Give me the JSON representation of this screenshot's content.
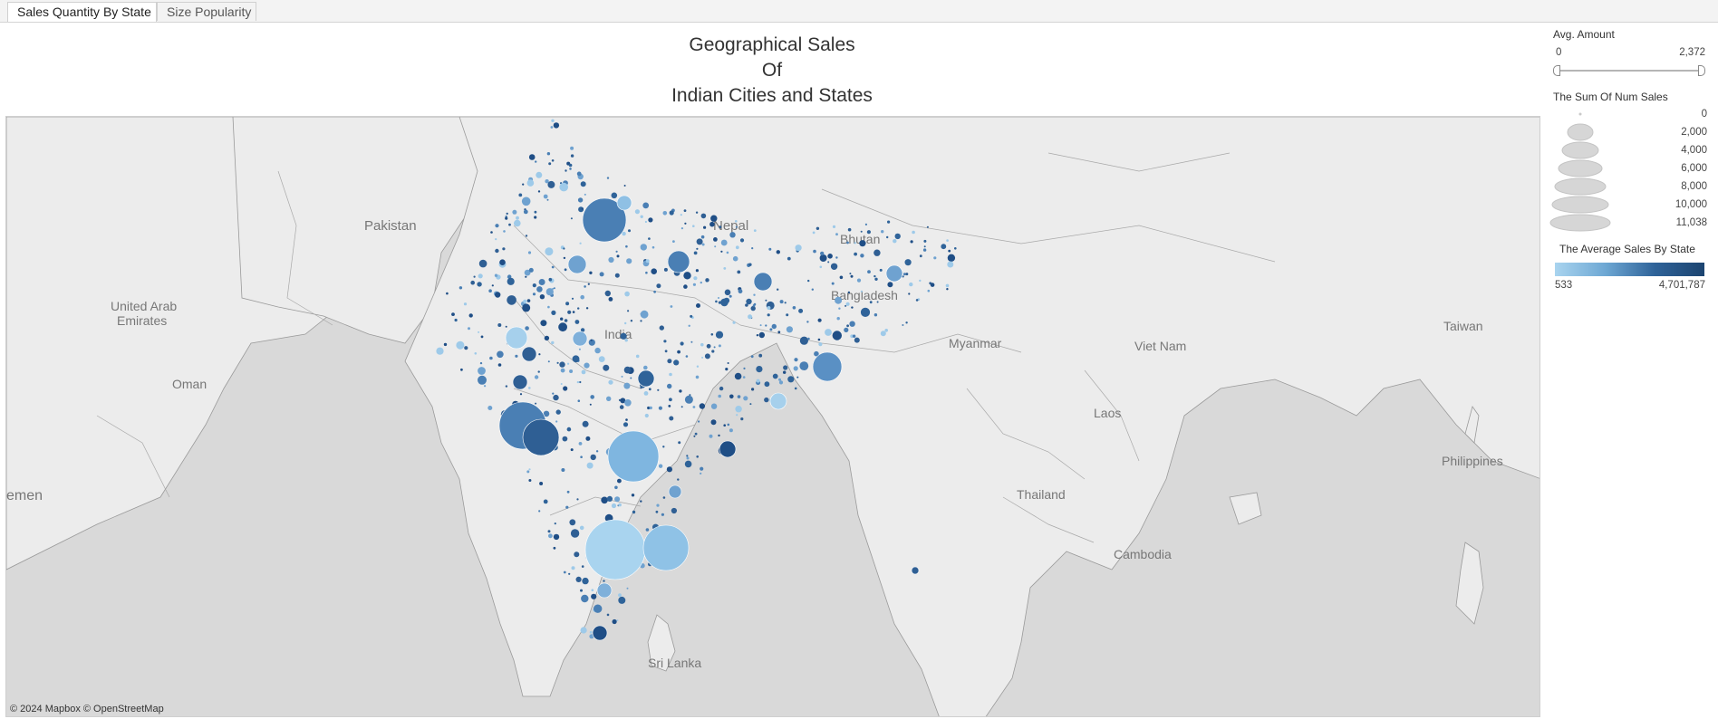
{
  "tabs": [
    {
      "label": "Sales Quantity By State",
      "active": true
    },
    {
      "label": "Size Popularity",
      "active": false
    }
  ],
  "title": {
    "line1": "Geographical Sales",
    "line2": "Of",
    "line3": "Indian Cities and States"
  },
  "map": {
    "labels": {
      "pakistan": "Pakistan",
      "nepal": "Nepal",
      "bhutan": "Bhutan",
      "bangladesh": "Bangladesh",
      "uae_line1": "United Arab",
      "uae_line2": "Emirates",
      "oman": "Oman",
      "india": "India",
      "myanmar": "Myanmar",
      "vietnam": "Viet Nam",
      "laos": "Laos",
      "thailand": "Thailand",
      "cambodia": "Cambodia",
      "taiwan": "Taiwan",
      "philippines": "Philippines",
      "yemen": "emen",
      "srilanka": "Sri Lanka"
    },
    "credit": "© 2024 Mapbox  © OpenStreetMap",
    "colors": {
      "land": "#ececec",
      "sea": "#d9d9d9",
      "border": "#9a9a9a",
      "mark_light": "#9ecae9",
      "mark_dark": "#1f4e86"
    }
  },
  "legend": {
    "avg_amount": {
      "title": "Avg. Amount",
      "min": "0",
      "max": "2,372"
    },
    "sum_num_sales": {
      "title": "The Sum Of Num Sales",
      "values": [
        "0",
        "2,000",
        "4,000",
        "6,000",
        "8,000",
        "10,000",
        "11,038"
      ]
    },
    "avg_sales_by_state": {
      "title": "The Average Sales By State",
      "min": "533",
      "max": "4,701,787"
    }
  }
}
